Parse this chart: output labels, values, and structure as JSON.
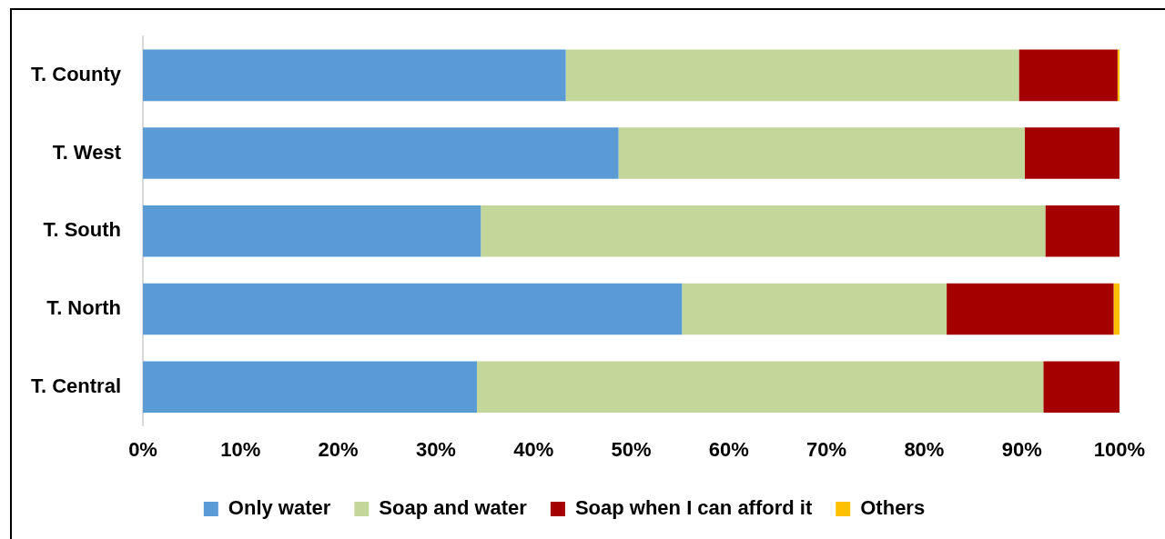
{
  "chart_data": {
    "type": "bar",
    "orientation": "horizontal",
    "stacked": true,
    "categories": [
      "T. County",
      "T. West",
      "T. South",
      "T. North",
      "T. Central"
    ],
    "series": [
      {
        "name": "Only water",
        "color": "#5b9bd5",
        "values": [
          43.3,
          48.7,
          34.6,
          55.2,
          34.2
        ]
      },
      {
        "name": "Soap and water",
        "color": "#c4d79b",
        "values": [
          46.4,
          41.6,
          57.8,
          27.1,
          58.0
        ]
      },
      {
        "name": "Soap when I can afford it",
        "color": "#a50000",
        "values": [
          10.1,
          9.7,
          7.6,
          17.1,
          7.8
        ]
      },
      {
        "name": "Others",
        "color": "#ffc000",
        "values": [
          0.2,
          0,
          0,
          0.6,
          0
        ]
      }
    ],
    "xlim": [
      0,
      100
    ],
    "xticks": [
      {
        "value": 0,
        "label": "0%"
      },
      {
        "value": 10,
        "label": "10%"
      },
      {
        "value": 20,
        "label": "20%"
      },
      {
        "value": 30,
        "label": "30%"
      },
      {
        "value": 40,
        "label": "40%"
      },
      {
        "value": 50,
        "label": "50%"
      },
      {
        "value": 60,
        "label": "60%"
      },
      {
        "value": 70,
        "label": "70%"
      },
      {
        "value": 80,
        "label": "80%"
      },
      {
        "value": 90,
        "label": "90%"
      },
      {
        "value": 100,
        "label": "100%"
      }
    ],
    "grid": false,
    "legend": "bottom"
  }
}
